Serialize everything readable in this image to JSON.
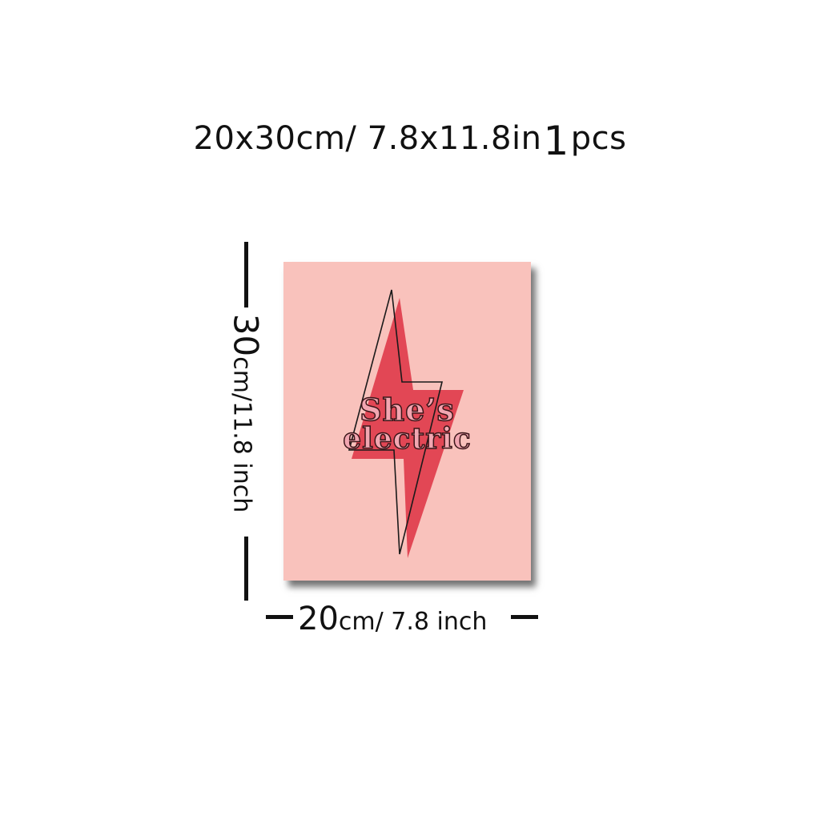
{
  "header": {
    "size_text": "20x30cm/ 7.8x11.8in",
    "count_number": "1",
    "count_unit": "pcs"
  },
  "height_dimension": {
    "number": "30",
    "unit_text": "cm/11.8 inch"
  },
  "width_dimension": {
    "number": "20",
    "unit_text": "cm/ 7.8 inch"
  },
  "poster": {
    "line1": "She’s",
    "line2": "electric",
    "background_color": "#f9c2bc",
    "bolt_color": "#e0404f",
    "text_fill_color": "#f2a6b1",
    "icon": "lightning-bolt-icon"
  }
}
